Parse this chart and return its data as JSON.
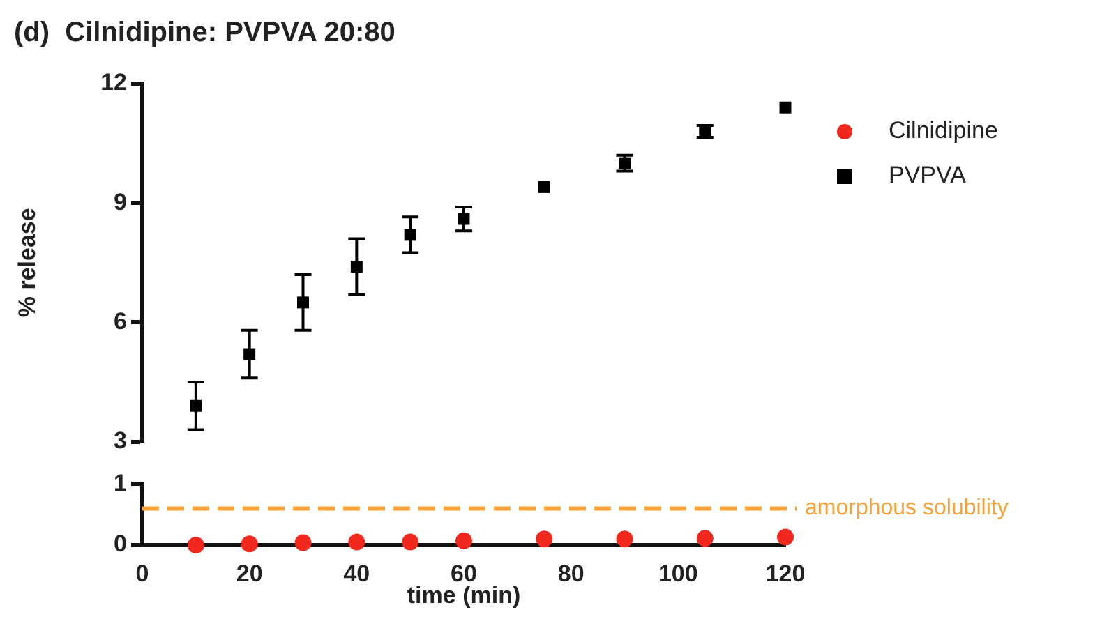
{
  "chart_data": [
    {
      "type": "scatter",
      "title": "(d)  Cilnidipine: PVPVA 20:80",
      "ylabel": "% release",
      "xlim": [
        0,
        120
      ],
      "ylim": [
        3,
        12
      ],
      "yticks": [
        3,
        6,
        9,
        12
      ],
      "tick_labels": "y",
      "legend": "top right",
      "grid": false,
      "series": [
        {
          "name": "PVPVA",
          "color": "#000000",
          "marker": "square",
          "x": [
            10,
            20,
            30,
            40,
            50,
            60,
            75,
            90,
            105,
            120
          ],
          "values": [
            3.9,
            5.2,
            6.5,
            7.4,
            8.2,
            8.6,
            9.4,
            10.0,
            10.8,
            11.4
          ],
          "errors": [
            0.6,
            0.6,
            0.7,
            0.7,
            0.45,
            0.3,
            null,
            0.2,
            0.15,
            null
          ]
        }
      ]
    },
    {
      "type": "scatter",
      "xlabel": "time (min)",
      "xlim": [
        0,
        120
      ],
      "xticks": [
        0,
        20,
        40,
        60,
        80,
        100,
        120
      ],
      "ylim": [
        0,
        1
      ],
      "yticks": [
        0,
        1
      ],
      "grid": false,
      "ref_lines": [
        {
          "axis": "y",
          "value": 0.6,
          "label": "amorphous solubility",
          "color": "#f5a33c",
          "line_style": "dashed"
        }
      ],
      "series": [
        {
          "name": "Cilnidipine",
          "color": "#f0281e",
          "marker": "circle",
          "x": [
            10,
            20,
            30,
            40,
            50,
            60,
            75,
            90,
            105,
            120
          ],
          "values": [
            0.0,
            0.02,
            0.04,
            0.05,
            0.05,
            0.07,
            0.1,
            0.1,
            0.11,
            0.13
          ]
        }
      ]
    }
  ]
}
